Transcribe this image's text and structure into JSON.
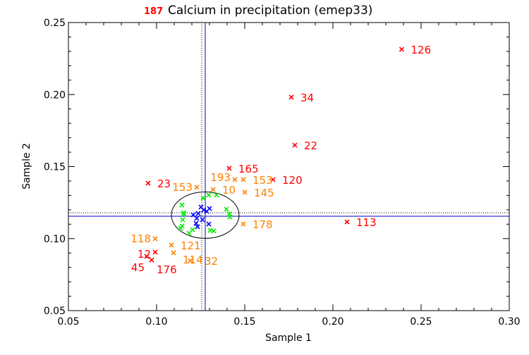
{
  "chart_data": {
    "type": "scatter",
    "title": "Calcium in precipitation (emep33)",
    "title_prefix": "187",
    "xlabel": "Sample 1",
    "ylabel": "Sample 2",
    "xlim": [
      0.05,
      0.3
    ],
    "ylim": [
      0.05,
      0.25
    ],
    "xticks": [
      "0.05",
      "0.10",
      "0.15",
      "0.20",
      "0.25",
      "0.30"
    ],
    "yticks": [
      "0.05",
      "0.10",
      "0.15",
      "0.20",
      "0.25"
    ],
    "grid": false,
    "colors": {
      "red": "#ff0000",
      "orange": "#ff8000",
      "green": "#00ee00",
      "blue": "#0000ff",
      "axis": "#000000",
      "reference_lines": "#0000cc"
    },
    "reference": {
      "x_solid": 0.1276,
      "x_dotted": 0.1256,
      "y_solid": 0.1155,
      "y_dotted": 0.118,
      "ellipse_center": [
        0.1276,
        0.1163
      ],
      "ellipse_radius": [
        0.0192,
        0.0161
      ]
    },
    "series": [
      {
        "color": "red",
        "points": [
          {
            "x": 0.239,
            "y": 0.2314,
            "label": "126"
          },
          {
            "x": 0.1764,
            "y": 0.1982,
            "label": "34"
          },
          {
            "x": 0.1784,
            "y": 0.1649,
            "label": "22"
          },
          {
            "x": 0.1412,
            "y": 0.1488,
            "label": "165"
          },
          {
            "x": 0.166,
            "y": 0.141,
            "label": "120"
          },
          {
            "x": 0.0952,
            "y": 0.1385,
            "label": "23"
          },
          {
            "x": 0.208,
            "y": 0.1116,
            "label": "113"
          },
          {
            "x": 0.0992,
            "y": 0.0906,
            "label": "12"
          },
          {
            "x": 0.0944,
            "y": 0.0877,
            "label": "45"
          },
          {
            "x": 0.0972,
            "y": 0.0852,
            "label": "176"
          }
        ]
      },
      {
        "color": "orange",
        "points": [
          {
            "x": 0.1228,
            "y": 0.1356,
            "label": "153"
          },
          {
            "x": 0.132,
            "y": 0.1341,
            "label": "10"
          },
          {
            "x": 0.1444,
            "y": 0.141,
            "label": "193"
          },
          {
            "x": 0.1492,
            "y": 0.141,
            "label": "153"
          },
          {
            "x": 0.15,
            "y": 0.1322,
            "label": "145"
          },
          {
            "x": 0.1492,
            "y": 0.1101,
            "label": "178"
          },
          {
            "x": 0.0992,
            "y": 0.0999,
            "label": "118"
          },
          {
            "x": 0.1084,
            "y": 0.0955,
            "label": "121"
          },
          {
            "x": 0.1096,
            "y": 0.0901,
            "label": "114"
          },
          {
            "x": 0.1192,
            "y": 0.0847,
            "label": "32"
          }
        ]
      },
      {
        "color": "green",
        "points": [
          {
            "x": 0.1264,
            "y": 0.1282
          },
          {
            "x": 0.1296,
            "y": 0.1302
          },
          {
            "x": 0.134,
            "y": 0.1302
          },
          {
            "x": 0.1144,
            "y": 0.1233
          },
          {
            "x": 0.1152,
            "y": 0.118
          },
          {
            "x": 0.1156,
            "y": 0.117
          },
          {
            "x": 0.1148,
            "y": 0.1131
          },
          {
            "x": 0.1144,
            "y": 0.1087
          },
          {
            "x": 0.1136,
            "y": 0.1072
          },
          {
            "x": 0.1204,
            "y": 0.1062
          },
          {
            "x": 0.1184,
            "y": 0.1038
          },
          {
            "x": 0.1396,
            "y": 0.1204
          },
          {
            "x": 0.1412,
            "y": 0.117
          },
          {
            "x": 0.1416,
            "y": 0.115
          },
          {
            "x": 0.1304,
            "y": 0.1057
          },
          {
            "x": 0.1324,
            "y": 0.1053
          }
        ]
      },
      {
        "color": "blue",
        "points": [
          {
            "x": 0.1252,
            "y": 0.1219
          },
          {
            "x": 0.1236,
            "y": 0.1175
          },
          {
            "x": 0.1268,
            "y": 0.1199
          },
          {
            "x": 0.13,
            "y": 0.1209
          },
          {
            "x": 0.1284,
            "y": 0.1189
          },
          {
            "x": 0.1208,
            "y": 0.1165
          },
          {
            "x": 0.1228,
            "y": 0.1141
          },
          {
            "x": 0.126,
            "y": 0.1131
          },
          {
            "x": 0.1224,
            "y": 0.1106
          },
          {
            "x": 0.1232,
            "y": 0.1082
          },
          {
            "x": 0.1296,
            "y": 0.1101
          }
        ]
      }
    ]
  }
}
